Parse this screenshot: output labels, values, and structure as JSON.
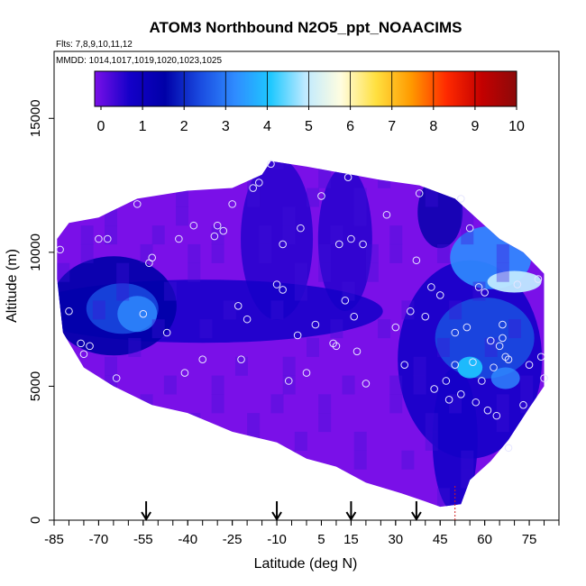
{
  "chart_data": {
    "type": "heatmap",
    "title": "ATOM3 Northbound N2O5_ppt_NOAACIMS",
    "flights_label": "Flts: 7,8,9,10,11,12",
    "dates_label": "MMDD: 1014,1017,1019,1020,1023,1025",
    "xlabel": "Latitude (deg N)",
    "ylabel": "Altitude (m)",
    "xlim": [
      -85,
      85
    ],
    "ylim": [
      0,
      17500
    ],
    "x_ticks": [
      -85,
      -70,
      -55,
      -40,
      -25,
      -10,
      5,
      15,
      30,
      45,
      60,
      75
    ],
    "y_ticks": [
      0,
      5000,
      10000,
      15000
    ],
    "colorbar": {
      "min": 0,
      "max": 10,
      "ticks": [
        "0",
        "1",
        "2",
        "3",
        "4",
        "5",
        "6",
        "7",
        "8",
        "9",
        "10"
      ],
      "colors": [
        "#7a10e8",
        "#1400c8",
        "#0000a8",
        "#1a4be0",
        "#2f8cff",
        "#1ec8ff",
        "#c0eaff",
        "#fffde0",
        "#ffe040",
        "#ff9a00",
        "#ff2a00",
        "#c40000",
        "#8c0a0a"
      ]
    },
    "arrow_latitudes": [
      -54,
      -10,
      15,
      37
    ],
    "profile_latitude": 50,
    "sample_points": [
      [
        -83,
        10100
      ],
      [
        -80,
        7800
      ],
      [
        -76,
        6600
      ],
      [
        -75,
        6200
      ],
      [
        -73,
        6500
      ],
      [
        -70,
        10500
      ],
      [
        -67,
        10500
      ],
      [
        -64,
        5300
      ],
      [
        -57,
        11800
      ],
      [
        -55,
        7700
      ],
      [
        -53,
        9600
      ],
      [
        -52,
        9800
      ],
      [
        -47,
        7000
      ],
      [
        -43,
        10500
      ],
      [
        -41,
        5500
      ],
      [
        -38,
        11000
      ],
      [
        -35,
        6000
      ],
      [
        -31,
        10600
      ],
      [
        -30,
        11000
      ],
      [
        -28,
        10800
      ],
      [
        -25,
        11800
      ],
      [
        -23,
        8000
      ],
      [
        -22,
        6000
      ],
      [
        -20,
        7500
      ],
      [
        -18,
        12400
      ],
      [
        -16,
        12600
      ],
      [
        -12,
        13300
      ],
      [
        -10,
        8800
      ],
      [
        -8,
        8600
      ],
      [
        -8,
        10300
      ],
      [
        -6,
        5200
      ],
      [
        -3,
        6900
      ],
      [
        -2,
        10900
      ],
      [
        0,
        5500
      ],
      [
        3,
        7300
      ],
      [
        5,
        12100
      ],
      [
        9,
        6600
      ],
      [
        10,
        6500
      ],
      [
        11,
        10300
      ],
      [
        13,
        8200
      ],
      [
        14,
        12800
      ],
      [
        15,
        10500
      ],
      [
        16,
        7600
      ],
      [
        17,
        6300
      ],
      [
        19,
        10300
      ],
      [
        20,
        5100
      ],
      [
        27,
        11400
      ],
      [
        30,
        7200
      ],
      [
        33,
        5800
      ],
      [
        35,
        7800
      ],
      [
        37,
        9700
      ],
      [
        38,
        12200
      ],
      [
        40,
        7600
      ],
      [
        42,
        8700
      ],
      [
        43,
        4900
      ],
      [
        45,
        8400
      ],
      [
        47,
        5200
      ],
      [
        48,
        4500
      ],
      [
        50,
        7000
      ],
      [
        50,
        5800
      ],
      [
        52,
        4700
      ],
      [
        52,
        12000
      ],
      [
        54,
        7200
      ],
      [
        55,
        10900
      ],
      [
        56,
        5900
      ],
      [
        57,
        4400
      ],
      [
        58,
        8700
      ],
      [
        59,
        5200
      ],
      [
        60,
        8500
      ],
      [
        61,
        4100
      ],
      [
        62,
        6700
      ],
      [
        63,
        5700
      ],
      [
        64,
        3900
      ],
      [
        65,
        6500
      ],
      [
        66,
        7300
      ],
      [
        66,
        6800
      ],
      [
        67,
        6100
      ],
      [
        68,
        6000
      ],
      [
        68,
        2700
      ],
      [
        71,
        8800
      ],
      [
        73,
        4300
      ],
      [
        75,
        5800
      ],
      [
        78,
        9000
      ],
      [
        79,
        6100
      ],
      [
        80,
        5300
      ]
    ]
  }
}
